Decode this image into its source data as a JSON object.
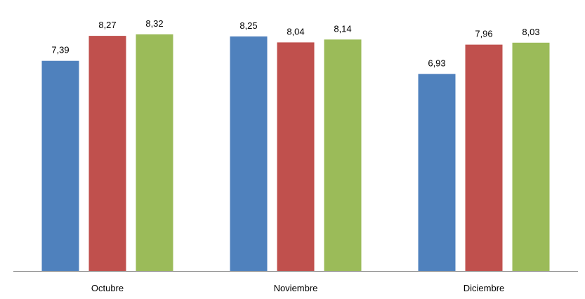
{
  "chart_data": {
    "type": "bar",
    "categories": [
      "Octubre",
      "Noviembre",
      "Diciembre"
    ],
    "series": [
      {
        "values": [
          7.39,
          8.25,
          6.93
        ],
        "color": "#4F81BD",
        "value_labels": [
          "7,39",
          "8,25",
          "6,93"
        ]
      },
      {
        "values": [
          8.27,
          8.04,
          7.96
        ],
        "color": "#C0504D",
        "value_labels": [
          "8,27",
          "8,04",
          "7,96"
        ]
      },
      {
        "values": [
          8.32,
          8.14,
          8.03
        ],
        "color": "#9BBB59",
        "value_labels": [
          "8,32",
          "8,14",
          "8,03"
        ]
      }
    ],
    "ylim": [
      0,
      8.5
    ],
    "grid": false,
    "legend": "none",
    "axis_color": "#808080"
  }
}
